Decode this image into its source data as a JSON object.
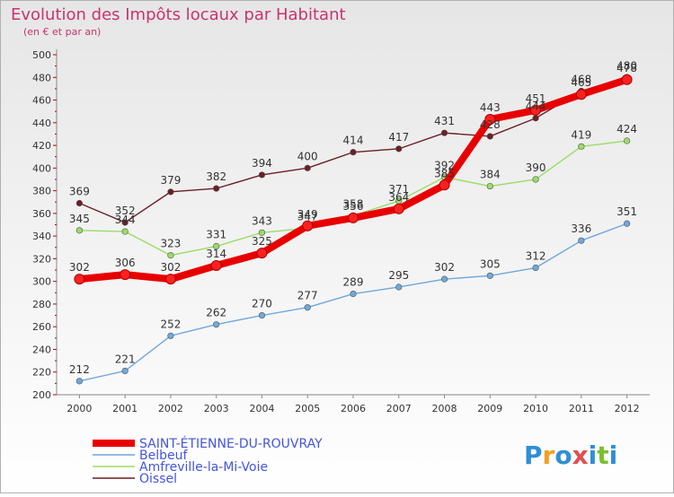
{
  "chart_data": {
    "type": "line",
    "title": "Evolution des Impôts locaux par Habitant",
    "subtitle": "(en € et par an)",
    "xlabel": "",
    "ylabel": "",
    "x": [
      "2000",
      "2001",
      "2002",
      "2003",
      "2004",
      "2005",
      "2006",
      "2007",
      "2008",
      "2009",
      "2010",
      "2011",
      "2012"
    ],
    "ylim": [
      200,
      500
    ],
    "yticks": [
      200,
      220,
      240,
      260,
      280,
      300,
      320,
      340,
      360,
      380,
      400,
      420,
      440,
      460,
      480,
      500
    ],
    "grid": false,
    "legend_position": "bottom-left",
    "series": [
      {
        "name": "SAINT-ÉTIENNE-DU-ROUVRAY",
        "color": "#e80000",
        "values": [
          302,
          306,
          302,
          314,
          325,
          349,
          356,
          364,
          385,
          443,
          451,
          465,
          478
        ],
        "labels": [
          "302",
          "306",
          "302",
          "314",
          "325",
          "349",
          "356",
          "364",
          "385",
          "443",
          "451",
          "465",
          "478"
        ]
      },
      {
        "name": "Belbeuf",
        "color": "#6fa8dc",
        "values": [
          212,
          221,
          252,
          262,
          270,
          277,
          289,
          295,
          302,
          305,
          312,
          336,
          351
        ],
        "labels": [
          "212",
          "221",
          "252",
          "262",
          "270",
          "277",
          "289",
          "295",
          "302",
          "305",
          "312",
          "336",
          "351"
        ]
      },
      {
        "name": "Amfreville-la-Mi-Voie",
        "color": "#99dd66",
        "values": [
          345,
          344,
          323,
          331,
          343,
          347,
          358,
          371,
          392,
          384,
          390,
          419,
          424
        ],
        "labels": [
          "345",
          "344",
          "323",
          "331",
          "343",
          "347",
          "358",
          "371",
          "392",
          "384",
          "390",
          "419",
          "424"
        ]
      },
      {
        "name": "Oissel",
        "color": "#6b1f24",
        "values": [
          369,
          352,
          379,
          382,
          394,
          400,
          414,
          417,
          431,
          428,
          444,
          468,
          480
        ],
        "labels": [
          "369",
          "352",
          "379",
          "382",
          "394",
          "400",
          "414",
          "417",
          "431",
          "428",
          "444",
          "468",
          "480"
        ]
      }
    ]
  },
  "brand": {
    "text": "Proxiti"
  }
}
